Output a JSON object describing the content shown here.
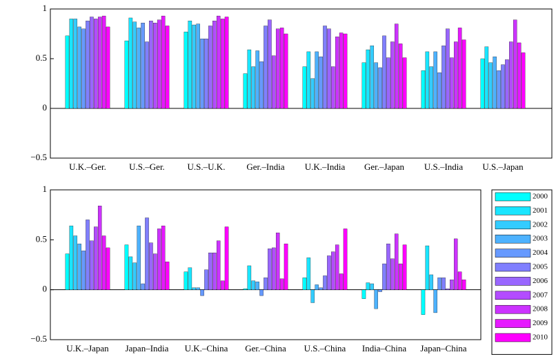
{
  "chart_data": [
    {
      "type": "bar",
      "categories": [
        "U.K.–Ger.",
        "U.S.–Ger.",
        "U.S.–U.K.",
        "Ger.–India",
        "U.K.–India",
        "Ger.–Japan",
        "U.S.–India",
        "U.S.–Japan"
      ],
      "ylim": [
        -0.5,
        1
      ],
      "yticks": [
        {
          "value": -0.5,
          "label": "−0.5"
        },
        0,
        0.5,
        1
      ],
      "series": [
        {
          "color": "#00ffff",
          "values": [
            0.73,
            0.68,
            0.77,
            0.35,
            0.42,
            0.46,
            0.38,
            0.5
          ]
        },
        {
          "color": "#1ae5ff",
          "values": [
            0.9,
            0.91,
            0.88,
            0.59,
            0.57,
            0.59,
            0.57,
            0.62
          ]
        },
        {
          "color": "#33ccff",
          "values": [
            0.9,
            0.87,
            0.84,
            0.42,
            0.3,
            0.63,
            0.42,
            0.46
          ]
        },
        {
          "color": "#4db2ff",
          "values": [
            0.82,
            0.81,
            0.85,
            0.58,
            0.57,
            0.46,
            0.57,
            0.52
          ]
        },
        {
          "color": "#6699ff",
          "values": [
            0.8,
            0.86,
            0.7,
            0.47,
            0.52,
            0.41,
            0.36,
            0.38
          ]
        },
        {
          "color": "#807fff",
          "values": [
            0.88,
            0.67,
            0.7,
            0.83,
            0.83,
            0.73,
            0.63,
            0.44
          ]
        },
        {
          "color": "#9966ff",
          "values": [
            0.92,
            0.88,
            0.83,
            0.89,
            0.8,
            0.51,
            0.8,
            0.49
          ]
        },
        {
          "color": "#b34cff",
          "values": [
            0.9,
            0.86,
            0.88,
            0.53,
            0.42,
            0.67,
            0.51,
            0.67
          ]
        },
        {
          "color": "#cc33ff",
          "values": [
            0.92,
            0.89,
            0.93,
            0.8,
            0.72,
            0.85,
            0.67,
            0.89
          ]
        },
        {
          "color": "#e619ff",
          "values": [
            0.93,
            0.93,
            0.9,
            0.81,
            0.76,
            0.65,
            0.81,
            0.66
          ]
        },
        {
          "color": "#ff00ff",
          "values": [
            0.82,
            0.83,
            0.92,
            0.75,
            0.75,
            0.51,
            0.69,
            0.56
          ]
        }
      ]
    },
    {
      "type": "bar",
      "categories": [
        "U.K.–Japan",
        "Japan–India",
        "U.K.–China",
        "Ger.–China",
        "U.S.–China",
        "India–China",
        "Japan–China"
      ],
      "ylim": [
        -0.5,
        1
      ],
      "yticks": [
        {
          "value": -0.5,
          "label": "−0.5"
        },
        0,
        0.5,
        1
      ],
      "legend": "right",
      "series": [
        {
          "name": "2000",
          "color": "#00ffff",
          "values": [
            0.36,
            0.45,
            0.18,
            0.01,
            0.12,
            -0.09,
            -0.25
          ]
        },
        {
          "name": "2001",
          "color": "#1ae5ff",
          "values": [
            0.64,
            0.33,
            0.22,
            0.24,
            0.32,
            0.07,
            0.44
          ]
        },
        {
          "name": "2002",
          "color": "#33ccff",
          "values": [
            0.54,
            0.27,
            0.02,
            0.09,
            -0.13,
            0.06,
            0.15
          ]
        },
        {
          "name": "2003",
          "color": "#4db2ff",
          "values": [
            0.46,
            0.64,
            0.02,
            0.08,
            0.05,
            -0.19,
            -0.23
          ]
        },
        {
          "name": "2004",
          "color": "#6699ff",
          "values": [
            0.39,
            0.06,
            -0.06,
            -0.06,
            0.02,
            -0.02,
            0.12
          ]
        },
        {
          "name": "2005",
          "color": "#807fff",
          "values": [
            0.7,
            0.72,
            0.2,
            0.12,
            0.14,
            0.26,
            0.12
          ]
        },
        {
          "name": "2006",
          "color": "#9966ff",
          "values": [
            0.49,
            0.47,
            0.37,
            0.41,
            0.34,
            0.46,
            0.01
          ]
        },
        {
          "name": "2007",
          "color": "#b34cff",
          "values": [
            0.63,
            0.36,
            0.37,
            0.42,
            0.38,
            0.31,
            0.1
          ]
        },
        {
          "name": "2008",
          "color": "#cc33ff",
          "values": [
            0.84,
            0.61,
            0.49,
            0.57,
            0.45,
            0.56,
            0.51
          ]
        },
        {
          "name": "2009",
          "color": "#e619ff",
          "values": [
            0.54,
            0.64,
            0.09,
            0.11,
            0.16,
            0.26,
            0.18
          ]
        },
        {
          "name": "2010",
          "color": "#ff00ff",
          "values": [
            0.42,
            0.28,
            0.63,
            0.46,
            0.61,
            0.45,
            0.1
          ]
        }
      ]
    }
  ]
}
